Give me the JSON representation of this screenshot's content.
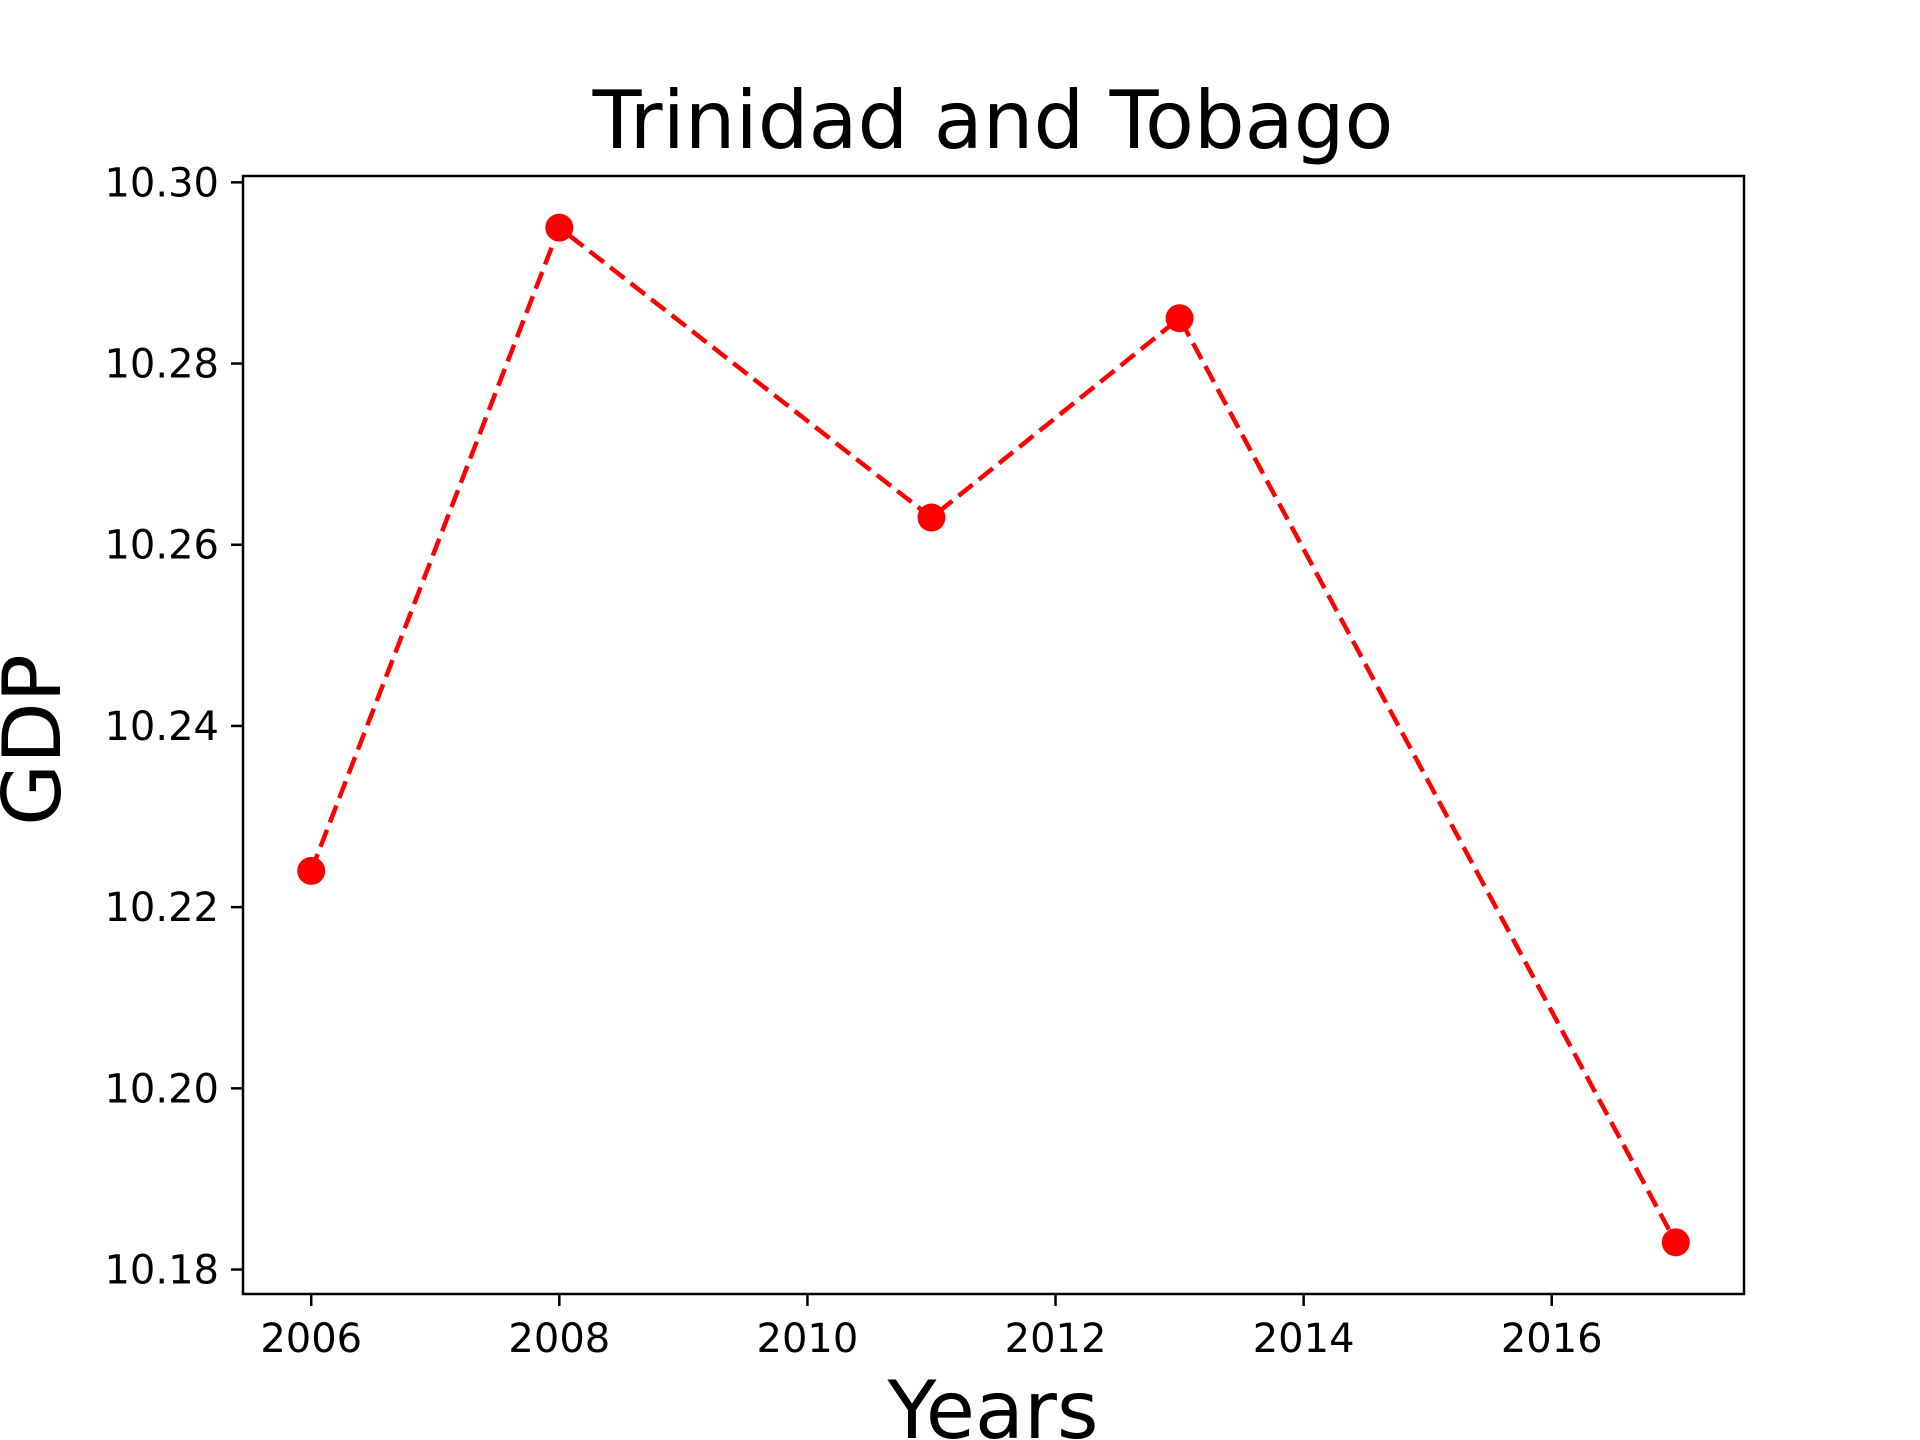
{
  "chart_data": {
    "type": "line",
    "title": "Trinidad and Tobago",
    "xlabel": "Years",
    "ylabel": "GDP",
    "xlim": [
      2005.45,
      2017.55
    ],
    "ylim": [
      10.1773,
      10.3007
    ],
    "x_ticks": [
      2006,
      2008,
      2010,
      2012,
      2014,
      2016
    ],
    "y_ticks": [
      10.18,
      10.2,
      10.22,
      10.24,
      10.26,
      10.28,
      10.3
    ],
    "y_tick_labels": [
      "10.18",
      "10.20",
      "10.22",
      "10.24",
      "10.26",
      "10.28",
      "10.30"
    ],
    "grid": false,
    "legend": "none",
    "series": [
      {
        "color": "#ff0000",
        "line_style": "dashed",
        "marker": "circle",
        "x": [
          2006,
          2008,
          2011,
          2013,
          2017
        ],
        "y": [
          10.224,
          10.295,
          10.263,
          10.285,
          10.183
        ]
      }
    ]
  }
}
